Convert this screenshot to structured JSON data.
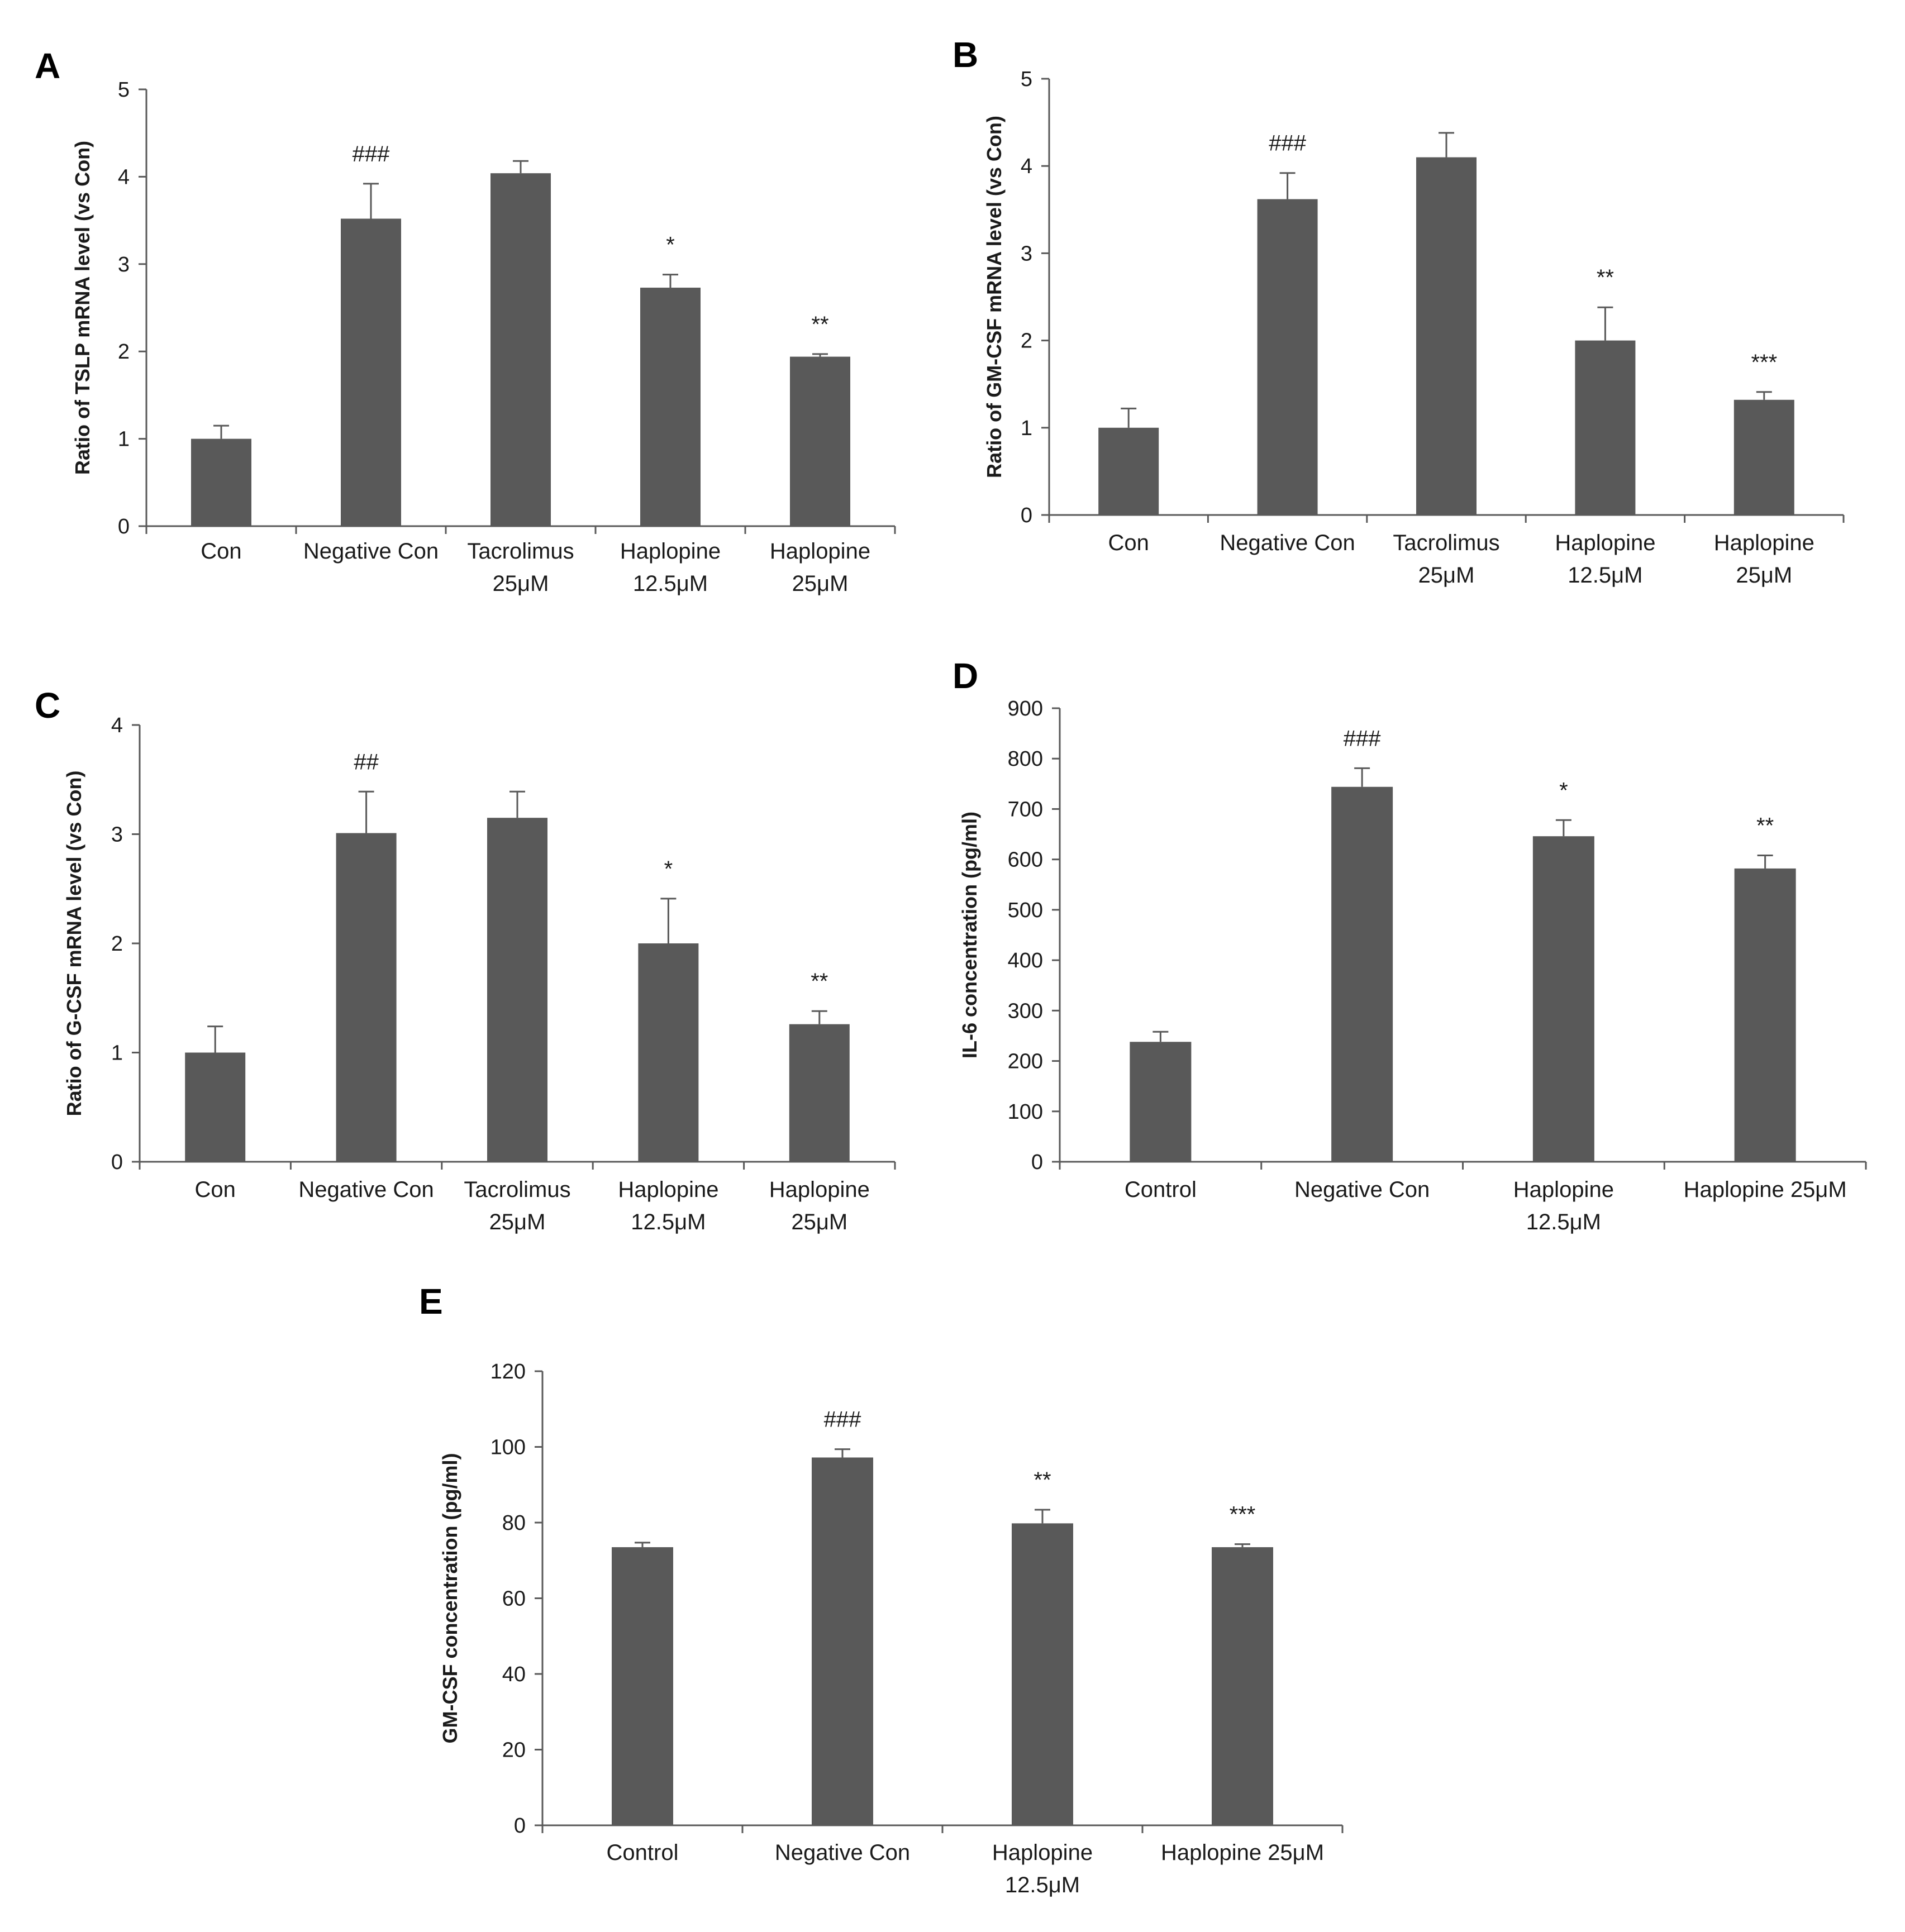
{
  "figure": {
    "background": "#ffffff",
    "bar_color": "#595959",
    "axis_color": "#595959",
    "text_color": "#1a1a1a"
  },
  "chart_data": [
    {
      "panel": "A",
      "type": "bar",
      "categories": [
        [
          "Con"
        ],
        [
          "Negative Con"
        ],
        [
          "Tacrolimus",
          "25μM"
        ],
        [
          "Haplopine",
          "12.5μM"
        ],
        [
          "Haplopine",
          "25μM"
        ]
      ],
      "values": [
        1.0,
        3.52,
        4.04,
        2.73,
        1.94
      ],
      "errors": [
        0.15,
        0.4,
        0.14,
        0.15,
        0.03
      ],
      "annotations": [
        "",
        "###",
        "",
        "*",
        "**"
      ],
      "ylabel": "Ratio of TSLP mRNA level (vs Con)",
      "ylim": [
        0,
        5
      ],
      "yticks": [
        0,
        1,
        2,
        3,
        4,
        5
      ]
    },
    {
      "panel": "B",
      "type": "bar",
      "categories": [
        [
          "Con"
        ],
        [
          "Negative Con"
        ],
        [
          "Tacrolimus",
          "25μM"
        ],
        [
          "Haplopine",
          "12.5μM"
        ],
        [
          "Haplopine",
          "25μM"
        ]
      ],
      "values": [
        1.0,
        3.62,
        4.1,
        2.0,
        1.32
      ],
      "errors": [
        0.22,
        0.3,
        0.28,
        0.38,
        0.09
      ],
      "annotations": [
        "",
        "###",
        "",
        "**",
        "***"
      ],
      "ylabel": "Ratio of GM-CSF mRNA level (vs Con)",
      "ylim": [
        0,
        5
      ],
      "yticks": [
        0,
        1,
        2,
        3,
        4,
        5
      ]
    },
    {
      "panel": "C",
      "type": "bar",
      "categories": [
        [
          "Con"
        ],
        [
          "Negative Con"
        ],
        [
          "Tacrolimus",
          "25μM"
        ],
        [
          "Haplopine",
          "12.5μM"
        ],
        [
          "Haplopine",
          "25μM"
        ]
      ],
      "values": [
        1.0,
        3.01,
        3.15,
        2.0,
        1.26
      ],
      "errors": [
        0.24,
        0.38,
        0.24,
        0.41,
        0.12
      ],
      "annotations": [
        "",
        "##",
        "",
        "*",
        "**"
      ],
      "ylabel": "Ratio of G-CSF mRNA level (vs Con)",
      "ylim": [
        0,
        4
      ],
      "yticks": [
        0,
        1,
        2,
        3,
        4
      ]
    },
    {
      "panel": "D",
      "type": "bar",
      "categories": [
        [
          "Control"
        ],
        [
          "Negative Con"
        ],
        [
          "Haplopine",
          "12.5μM"
        ],
        [
          "Haplopine 25μM"
        ]
      ],
      "values": [
        238,
        744,
        646,
        582
      ],
      "errors": [
        20,
        37,
        32,
        26
      ],
      "annotations": [
        "",
        "###",
        "*",
        "**"
      ],
      "ylabel": "IL-6 concentration  (pg/ml)",
      "ylim": [
        0,
        900
      ],
      "yticks": [
        0,
        100,
        200,
        300,
        400,
        500,
        600,
        700,
        800,
        900
      ]
    },
    {
      "panel": "E",
      "type": "bar",
      "categories": [
        [
          "Control"
        ],
        [
          "Negative Con"
        ],
        [
          "Haplopine",
          "12.5μM"
        ],
        [
          "Haplopine 25μM"
        ]
      ],
      "values": [
        73.5,
        97.2,
        79.8,
        73.5
      ],
      "errors": [
        1.2,
        2.2,
        3.6,
        0.8
      ],
      "annotations": [
        "",
        "###",
        "**",
        "***"
      ],
      "ylabel": "GM-CSF concentration (pg/ml)",
      "ylim": [
        0,
        120
      ],
      "yticks": [
        0,
        20,
        40,
        60,
        80,
        100,
        120
      ]
    }
  ]
}
